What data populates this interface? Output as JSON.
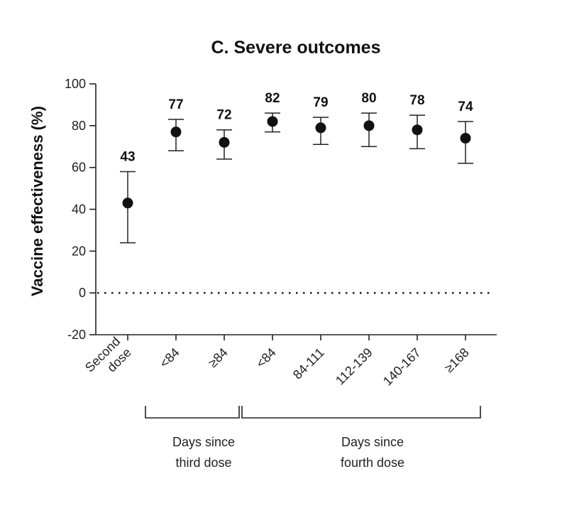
{
  "chart_data": {
    "type": "scatter",
    "title": "C. Severe outcomes",
    "ylabel": "Vaccine effectiveness (%)",
    "ylim": [
      -20,
      100
    ],
    "yticks": [
      -20,
      0,
      20,
      40,
      60,
      80,
      100
    ],
    "reference_line": 0,
    "grid": false,
    "categories": [
      [
        "Second",
        "dose"
      ],
      [
        "<84"
      ],
      [
        "≥84"
      ],
      [
        "<84"
      ],
      [
        "84-111"
      ],
      [
        "112-139"
      ],
      [
        "140-167"
      ],
      [
        "≥168"
      ]
    ],
    "values": [
      43,
      77,
      72,
      82,
      79,
      80,
      78,
      74
    ],
    "lower": [
      24,
      68,
      64,
      77,
      71,
      70,
      69,
      62
    ],
    "upper": [
      58,
      83,
      78,
      86,
      84,
      86,
      85,
      82
    ],
    "groups": [
      {
        "lines": [
          "Days since",
          "third dose"
        ],
        "from": 1,
        "to": 2
      },
      {
        "lines": [
          "Days since",
          "fourth dose"
        ],
        "from": 3,
        "to": 7
      }
    ]
  }
}
